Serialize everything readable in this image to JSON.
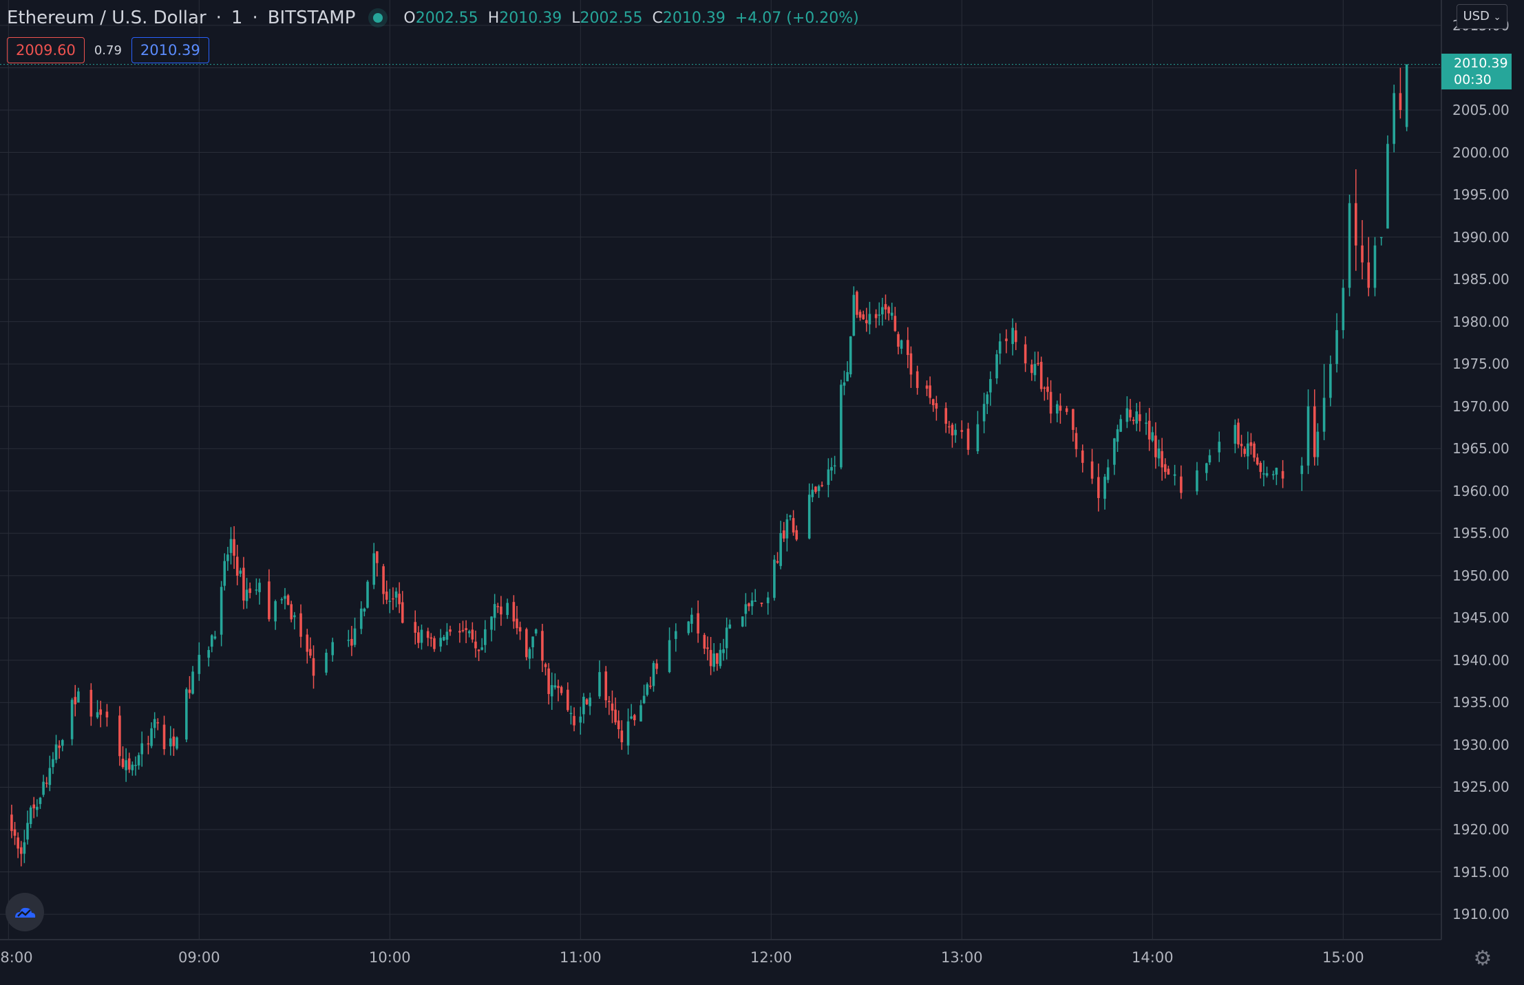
{
  "header": {
    "symbol": "Ethereum / U.S. Dollar",
    "interval": "1",
    "exchange": "BITSTAMP",
    "open_key": "O",
    "open": "2002.55",
    "high_key": "H",
    "high": "2010.39",
    "low_key": "L",
    "low": "2002.55",
    "close_key": "C",
    "close": "2010.39",
    "change": "+4.07 (+0.20%)"
  },
  "trade": {
    "sell": "2009.60",
    "spread": "0.79",
    "buy": "2010.39"
  },
  "price_axis": {
    "currency": "USD",
    "last_price": "2010.39",
    "countdown": "00:30",
    "ticks": [
      "2015.00",
      "2010.00",
      "2005.00",
      "2000.00",
      "1995.00",
      "1990.00",
      "1985.00",
      "1980.00",
      "1975.00",
      "1970.00",
      "1965.00",
      "1960.00",
      "1955.00",
      "1950.00",
      "1945.00",
      "1940.00",
      "1935.00",
      "1930.00",
      "1925.00",
      "1920.00",
      "1915.00",
      "1910.00"
    ]
  },
  "time_axis": {
    "ticks": [
      "8:00",
      "09:00",
      "10:00",
      "11:00",
      "12:00",
      "13:00",
      "14:00",
      "15:00"
    ]
  },
  "colors": {
    "up": "#26a69a",
    "down": "#ef5350",
    "background": "#131722",
    "grid": "#2a2e39"
  },
  "icons": {
    "logo": "tradingview-cloud-icon",
    "settings": "gear-icon"
  },
  "chart_data": {
    "type": "candlestick",
    "ylim": [
      1907,
      2018
    ],
    "xlim_minutes_from_0800": [
      -0.5,
      401.5
    ],
    "anchors": [
      [
        0,
        1922
      ],
      [
        3,
        1917
      ],
      [
        8,
        1923
      ],
      [
        12,
        1926
      ],
      [
        16,
        1930
      ],
      [
        18,
        1933
      ],
      [
        20,
        1936
      ],
      [
        26,
        1934
      ],
      [
        30,
        1935
      ],
      [
        34,
        1931
      ],
      [
        38,
        1926
      ],
      [
        42,
        1929
      ],
      [
        46,
        1933
      ],
      [
        50,
        1929
      ],
      [
        54,
        1933
      ],
      [
        58,
        1938
      ],
      [
        62,
        1941
      ],
      [
        66,
        1945
      ],
      [
        68,
        1951
      ],
      [
        70,
        1954
      ],
      [
        74,
        1948
      ],
      [
        78,
        1949
      ],
      [
        82,
        1946
      ],
      [
        86,
        1947
      ],
      [
        90,
        1945
      ],
      [
        96,
        1939
      ],
      [
        100,
        1940
      ],
      [
        104,
        1944
      ],
      [
        108,
        1942
      ],
      [
        112,
        1947
      ],
      [
        114,
        1953
      ],
      [
        118,
        1948
      ],
      [
        122,
        1947
      ],
      [
        126,
        1942
      ],
      [
        130,
        1943
      ],
      [
        134,
        1941
      ],
      [
        140,
        1945
      ],
      [
        144,
        1943
      ],
      [
        148,
        1940
      ],
      [
        152,
        1945
      ],
      [
        156,
        1947
      ],
      [
        158,
        1946
      ],
      [
        162,
        1941
      ],
      [
        166,
        1943
      ],
      [
        170,
        1937
      ],
      [
        174,
        1936
      ],
      [
        178,
        1933
      ],
      [
        182,
        1936
      ],
      [
        186,
        1938
      ],
      [
        190,
        1933
      ],
      [
        194,
        1931
      ],
      [
        198,
        1934
      ],
      [
        202,
        1938
      ],
      [
        206,
        1941
      ],
      [
        210,
        1943
      ],
      [
        214,
        1945
      ],
      [
        218,
        1942
      ],
      [
        222,
        1940
      ],
      [
        226,
        1943
      ],
      [
        230,
        1944
      ],
      [
        234,
        1947
      ],
      [
        238,
        1945
      ],
      [
        241,
        1951
      ],
      [
        245,
        1957
      ],
      [
        248,
        1954
      ],
      [
        252,
        1959
      ],
      [
        256,
        1960
      ],
      [
        260,
        1963
      ],
      [
        262,
        1972
      ],
      [
        264,
        1975
      ],
      [
        266,
        1982
      ],
      [
        270,
        1980
      ],
      [
        274,
        1982
      ],
      [
        278,
        1980
      ],
      [
        282,
        1976
      ],
      [
        286,
        1973
      ],
      [
        290,
        1971
      ],
      [
        294,
        1969
      ],
      [
        298,
        1967
      ],
      [
        302,
        1965
      ],
      [
        306,
        1968
      ],
      [
        308,
        1972
      ],
      [
        310,
        1975
      ],
      [
        314,
        1978
      ],
      [
        318,
        1979
      ],
      [
        320,
        1975
      ],
      [
        324,
        1974
      ],
      [
        328,
        1970
      ],
      [
        332,
        1969
      ],
      [
        336,
        1966
      ],
      [
        340,
        1961
      ],
      [
        344,
        1960
      ],
      [
        348,
        1966
      ],
      [
        352,
        1969
      ],
      [
        356,
        1968
      ],
      [
        360,
        1966
      ],
      [
        362,
        1964
      ],
      [
        366,
        1962
      ],
      [
        370,
        1960
      ],
      [
        374,
        1962
      ],
      [
        378,
        1965
      ],
      [
        382,
        1966
      ],
      [
        386,
        1967
      ],
      [
        390,
        1965
      ],
      [
        394,
        1963
      ],
      [
        398,
        1962
      ],
      [
        402,
        1962
      ]
    ],
    "explicit_candles": [
      {
        "t": 407,
        "o": 1962,
        "h": 1964,
        "l": 1960,
        "c": 1963
      },
      {
        "t": 409,
        "o": 1963,
        "h": 1972,
        "l": 1962,
        "c": 1970
      },
      {
        "t": 411,
        "o": 1970,
        "h": 1972,
        "l": 1963,
        "c": 1964
      },
      {
        "t": 412,
        "o": 1964,
        "h": 1968,
        "l": 1963,
        "c": 1967
      },
      {
        "t": 414,
        "o": 1967,
        "h": 1975,
        "l": 1966,
        "c": 1971
      },
      {
        "t": 416,
        "o": 1971,
        "h": 1976,
        "l": 1970,
        "c": 1975
      },
      {
        "t": 418,
        "o": 1975,
        "h": 1981,
        "l": 1974,
        "c": 1979
      },
      {
        "t": 420,
        "o": 1979,
        "h": 1985,
        "l": 1978,
        "c": 1984
      },
      {
        "t": 422,
        "o": 1984,
        "h": 1995,
        "l": 1983,
        "c": 1994
      },
      {
        "t": 424,
        "o": 1994,
        "h": 1998,
        "l": 1986,
        "c": 1989
      },
      {
        "t": 426,
        "o": 1989,
        "h": 1992,
        "l": 1985,
        "c": 1987
      },
      {
        "t": 428,
        "o": 1987,
        "h": 1990,
        "l": 1983,
        "c": 1984
      },
      {
        "t": 430,
        "o": 1984,
        "h": 1990,
        "l": 1983,
        "c": 1989
      },
      {
        "t": 432,
        "o": 1990,
        "h": 1990,
        "l": 1989,
        "c": 1990
      },
      {
        "t": 434,
        "o": 1991,
        "h": 2002,
        "l": 1991,
        "c": 2001
      },
      {
        "t": 436,
        "o": 2001,
        "h": 2008,
        "l": 2000,
        "c": 2007
      },
      {
        "t": 438,
        "o": 2007,
        "h": 2010,
        "l": 2004,
        "c": 2005
      },
      {
        "t": 440,
        "o": 2003,
        "h": 2010.4,
        "l": 2002.5,
        "c": 2010.39
      }
    ]
  }
}
